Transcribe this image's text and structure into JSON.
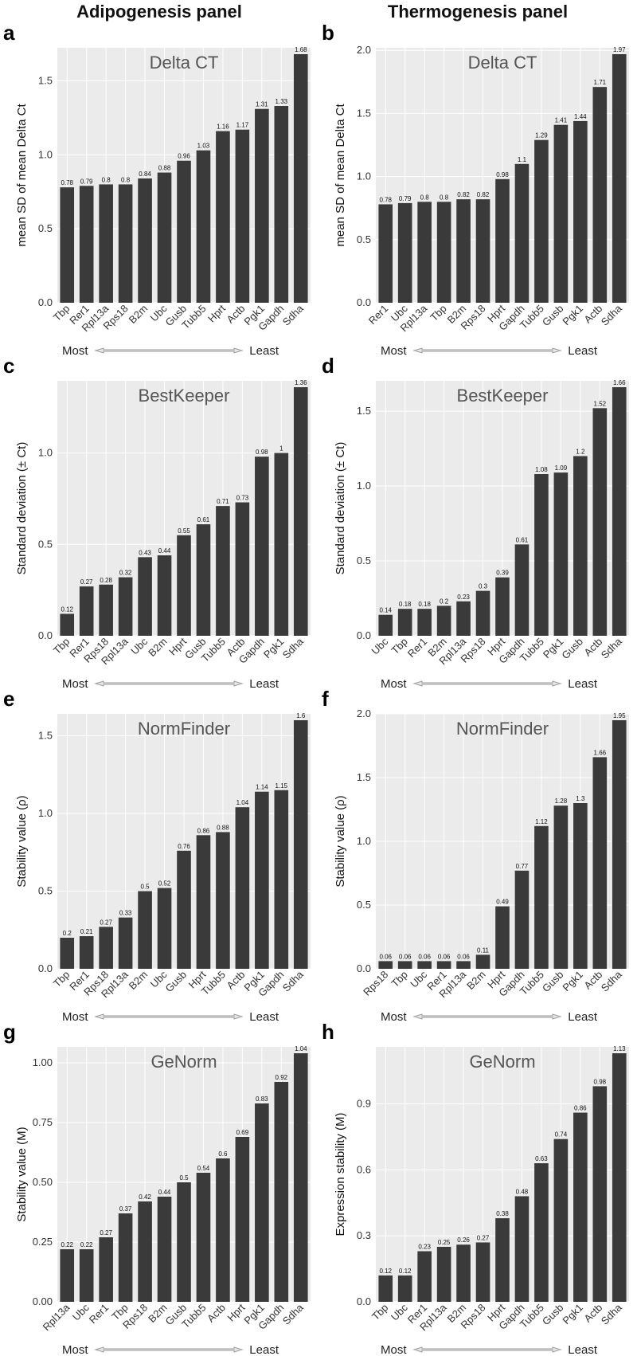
{
  "headers": {
    "left": "Adipogenesis panel",
    "right": "Thermogenesis panel"
  },
  "rank_labels": {
    "most": "Most",
    "least": "Least"
  },
  "chart_data": [
    {
      "letter": "a",
      "type": "bar",
      "title": "Delta CT",
      "ylabel": "mean SD of mean Delta Ct",
      "categories": [
        "Tbp",
        "Rer1",
        "Rpl13a",
        "Rps18",
        "B2m",
        "Ubc",
        "Gusb",
        "Tubb5",
        "Hprt",
        "Actb",
        "Pgk1",
        "Gapdh",
        "Sdha"
      ],
      "values": [
        0.78,
        0.79,
        0.8,
        0.8,
        0.84,
        0.88,
        0.96,
        1.03,
        1.16,
        1.17,
        1.31,
        1.33,
        1.68
      ],
      "ylim": [
        0,
        1.68
      ],
      "yticks": [
        0.0,
        0.5,
        1.0,
        1.5
      ],
      "ytick_labels": [
        "0.0",
        "0.5",
        "1.0",
        "1.5"
      ]
    },
    {
      "letter": "b",
      "type": "bar",
      "title": "Delta CT",
      "ylabel": "mean SD of mean Delta Ct",
      "categories": [
        "Rer1",
        "Ubc",
        "Rpl13a",
        "Tbp",
        "B2m",
        "Rps18",
        "Hprt",
        "Gapdh",
        "Tubb5",
        "Gusb",
        "Pgk1",
        "Actb",
        "Sdha"
      ],
      "values": [
        0.78,
        0.79,
        0.8,
        0.8,
        0.82,
        0.82,
        0.98,
        1.1,
        1.29,
        1.41,
        1.44,
        1.71,
        1.97
      ],
      "ylim": [
        0,
        1.97
      ],
      "yticks": [
        0.0,
        0.5,
        1.0,
        1.5,
        2.0
      ],
      "ytick_labels": [
        "0.0",
        "0.5",
        "1.0",
        "1.5",
        "2.0"
      ]
    },
    {
      "letter": "c",
      "type": "bar",
      "title": "BestKeeper",
      "ylabel": "Standard deviation (± Ct)",
      "categories": [
        "Tbp",
        "Rer1",
        "Rps18",
        "Rpl13a",
        "Ubc",
        "B2m",
        "Hprt",
        "Gusb",
        "Tubb5",
        "Actb",
        "Gapdh",
        "Pgk1",
        "Sdha"
      ],
      "values": [
        0.12,
        0.27,
        0.28,
        0.32,
        0.43,
        0.44,
        0.55,
        0.61,
        0.71,
        0.73,
        0.98,
        1,
        1.36
      ],
      "ylim": [
        0,
        1.36
      ],
      "yticks": [
        0.0,
        0.5,
        1.0
      ],
      "ytick_labels": [
        "0.0",
        "0.5",
        "1.0"
      ]
    },
    {
      "letter": "d",
      "type": "bar",
      "title": "BestKeeper",
      "ylabel": "Standard deviation (± Ct)",
      "categories": [
        "Ubc",
        "Tbp",
        "Rer1",
        "B2m",
        "Rpl13a",
        "Rps18",
        "Hprt",
        "Gapdh",
        "Tubb5",
        "Pgk1",
        "Gusb",
        "Actb",
        "Sdha"
      ],
      "values": [
        0.14,
        0.18,
        0.18,
        0.2,
        0.23,
        0.3,
        0.39,
        0.61,
        1.08,
        1.09,
        1.2,
        1.52,
        1.66
      ],
      "ylim": [
        0,
        1.66
      ],
      "yticks": [
        0.0,
        0.5,
        1.0,
        1.5
      ],
      "ytick_labels": [
        "0.0",
        "0.5",
        "1.0",
        "1.5"
      ]
    },
    {
      "letter": "e",
      "type": "bar",
      "title": "NormFinder",
      "ylabel": "Stability value (ρ)",
      "categories": [
        "Tbp",
        "Rer1",
        "Rps18",
        "Rpl13a",
        "B2m",
        "Ubc",
        "Gusb",
        "Hprt",
        "Tubb5",
        "Actb",
        "Pgk1",
        "Gapdh",
        "Sdha"
      ],
      "values": [
        0.2,
        0.21,
        0.27,
        0.33,
        0.5,
        0.52,
        0.76,
        0.86,
        0.88,
        1.04,
        1.14,
        1.15,
        1.6
      ],
      "ylim": [
        0,
        1.6
      ],
      "yticks": [
        0.0,
        0.5,
        1.0,
        1.5
      ],
      "ytick_labels": [
        "0.0",
        "0.5",
        "1.0",
        "1.5"
      ]
    },
    {
      "letter": "f",
      "type": "bar",
      "title": "NormFinder",
      "ylabel": "Stability value (ρ)",
      "categories": [
        "Rps18",
        "Tbp",
        "Ubc",
        "Rer1",
        "Rpl13a",
        "B2m",
        "Hprt",
        "Gapdh",
        "Tubb5",
        "Gusb",
        "Pgk1",
        "Actb",
        "Sdha"
      ],
      "values": [
        0.06,
        0.06,
        0.06,
        0.06,
        0.06,
        0.11,
        0.49,
        0.77,
        1.12,
        1.28,
        1.3,
        1.66,
        1.95
      ],
      "ylim": [
        0,
        1.95
      ],
      "yticks": [
        0.0,
        0.5,
        1.0,
        1.5,
        2.0
      ],
      "ytick_labels": [
        "0.0",
        "0.5",
        "1.0",
        "1.5",
        "2.0"
      ]
    },
    {
      "letter": "g",
      "type": "bar",
      "title": "GeNorm",
      "ylabel": "Stability value (M)",
      "categories": [
        "Rpl13a",
        "Ubc",
        "Rer1",
        "Tbp",
        "Rps18",
        "B2m",
        "Gusb",
        "Tubb5",
        "Actb",
        "Hprt",
        "Pgk1",
        "Gapdh",
        "Sdha"
      ],
      "values": [
        0.22,
        0.22,
        0.27,
        0.37,
        0.42,
        0.44,
        0.5,
        0.54,
        0.6,
        0.69,
        0.83,
        0.92,
        1.04
      ],
      "ylim": [
        0,
        1.04
      ],
      "yticks": [
        0.0,
        0.25,
        0.5,
        0.75,
        1.0
      ],
      "ytick_labels": [
        "0.00",
        "0.25",
        "0.50",
        "0.75",
        "1.00"
      ]
    },
    {
      "letter": "h",
      "type": "bar",
      "title": "GeNorm",
      "ylabel": "Expression stability (M)",
      "categories": [
        "Tbp",
        "Ubc",
        "Rer1",
        "Rpl13a",
        "B2m",
        "Rps18",
        "Hprt",
        "Gapdh",
        "Tubb5",
        "Gusb",
        "Pgk1",
        "Actb",
        "Sdha"
      ],
      "values": [
        0.12,
        0.12,
        0.23,
        0.25,
        0.26,
        0.27,
        0.38,
        0.48,
        0.63,
        0.74,
        0.86,
        0.98,
        1.13
      ],
      "ylim": [
        0,
        1.13
      ],
      "yticks": [
        0.0,
        0.3,
        0.6,
        0.9
      ],
      "ytick_labels": [
        "0.0",
        "0.3",
        "0.6",
        "0.9"
      ]
    }
  ]
}
